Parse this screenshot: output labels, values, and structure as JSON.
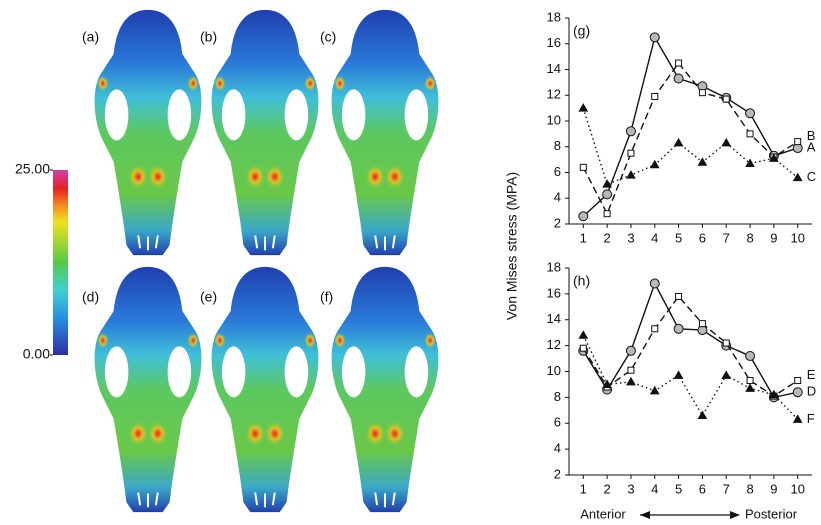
{
  "panels": {
    "labels": [
      "(a)",
      "(b)",
      "(c)",
      "(d)",
      "(e)",
      "(f)"
    ]
  },
  "colorbar": {
    "lim": [
      0,
      25
    ],
    "ticks": [
      {
        "value": 0,
        "label": "0.00"
      },
      {
        "value": 25,
        "label": "25.00"
      }
    ]
  },
  "axis_note": {
    "left": "Anterior",
    "right": "Posterior"
  },
  "chart_data": [
    {
      "type": "line",
      "title": "(g)",
      "ylabel": "Von Mises stress (MPA)",
      "x": [
        1,
        2,
        3,
        4,
        5,
        6,
        7,
        8,
        9,
        10
      ],
      "xlim": [
        0.4,
        10.6
      ],
      "xticks": [
        1,
        2,
        3,
        4,
        5,
        6,
        7,
        8,
        9,
        10
      ],
      "ylim": [
        2,
        18
      ],
      "yticks": [
        2,
        4,
        6,
        8,
        10,
        12,
        14,
        16,
        18
      ],
      "series": [
        {
          "name": "A",
          "color": "#111111",
          "dash": "solid",
          "marker": "circle",
          "marker_fill": "#b8b8b8",
          "values": [
            2.6,
            4.3,
            9.2,
            16.5,
            13.3,
            12.7,
            11.8,
            10.6,
            7.3,
            7.9
          ]
        },
        {
          "name": "B",
          "color": "#111111",
          "dash": "dashed",
          "marker": "square",
          "marker_fill": "#ffffff",
          "values": [
            6.4,
            2.8,
            7.5,
            11.9,
            14.5,
            12.2,
            11.7,
            9.0,
            7.2,
            8.4
          ]
        },
        {
          "name": "C",
          "color": "#111111",
          "dash": "dotted",
          "marker": "triangle",
          "marker_fill": "#111111",
          "values": [
            11.0,
            5.1,
            5.8,
            6.6,
            8.3,
            6.8,
            8.3,
            6.7,
            7.1,
            5.6
          ]
        }
      ]
    },
    {
      "type": "line",
      "title": "(h)",
      "x": [
        1,
        2,
        3,
        4,
        5,
        6,
        7,
        8,
        9,
        10
      ],
      "xlim": [
        0.4,
        10.6
      ],
      "xticks": [
        1,
        2,
        3,
        4,
        5,
        6,
        7,
        8,
        9,
        10
      ],
      "ylim": [
        2,
        18
      ],
      "yticks": [
        2,
        4,
        6,
        8,
        10,
        12,
        14,
        16,
        18
      ],
      "series": [
        {
          "name": "D",
          "color": "#111111",
          "dash": "solid",
          "marker": "circle",
          "marker_fill": "#b8b8b8",
          "values": [
            11.6,
            8.6,
            11.6,
            16.8,
            13.3,
            13.2,
            12.0,
            11.2,
            8.0,
            8.4
          ]
        },
        {
          "name": "E",
          "color": "#111111",
          "dash": "dashed",
          "marker": "square",
          "marker_fill": "#ffffff",
          "values": [
            11.8,
            8.8,
            10.1,
            13.3,
            15.8,
            13.7,
            12.2,
            9.3,
            8.1,
            9.3
          ]
        },
        {
          "name": "F",
          "color": "#111111",
          "dash": "dotted",
          "marker": "triangle",
          "marker_fill": "#111111",
          "values": [
            12.8,
            9.0,
            9.2,
            8.5,
            9.7,
            6.6,
            9.7,
            8.7,
            8.2,
            6.3
          ]
        }
      ]
    }
  ]
}
